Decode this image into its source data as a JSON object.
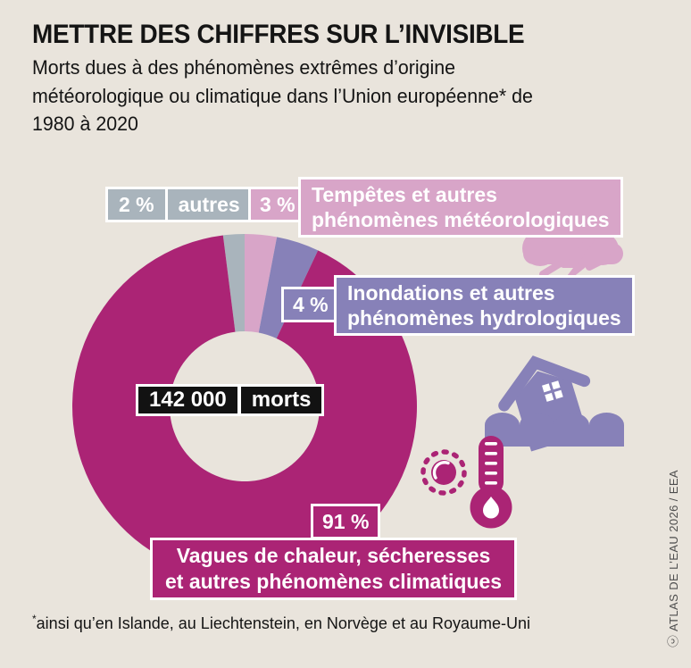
{
  "header": {
    "title": "METTRE DES CHIFFRES SUR L’INVISIBLE",
    "subtitle_lines": [
      "Morts dues à des phénomènes extrêmes d’origine",
      "météorologique ou climatique dans l’Union européenne* de",
      "1980 à 2020"
    ]
  },
  "chart_data": {
    "type": "donut",
    "title": "Morts dues à des phénomènes extrêmes d’origine météorologique ou climatique dans l’Union européenne de 1980 à 2020",
    "center_value": "142 000",
    "center_unit": "morts",
    "total_deaths": 142000,
    "start_angle_deg": -7.2,
    "outer_radius_px": 193,
    "inner_radius_px": 84,
    "segments": [
      {
        "key": "autres",
        "label": "autres",
        "pct": 2,
        "color_key": "gray"
      },
      {
        "key": "tempetes",
        "label": "Tempêtes et autres phénomènes météorologiques",
        "pct": 3,
        "color_key": "pink"
      },
      {
        "key": "inondations",
        "label": "Inondations et autres phénomènes hydrologiques",
        "pct": 4,
        "color_key": "purple"
      },
      {
        "key": "vagues",
        "label": "Vagues de chaleur, sécheresses et autres phénomènes climatiques",
        "pct": 91,
        "color_key": "magenta"
      }
    ]
  },
  "labels": {
    "autres": {
      "pct": "2 %",
      "name": "autres"
    },
    "tempetes": {
      "pct": "3 %",
      "line1": "Tempêtes et autres",
      "line2": "phénomènes météorologiques"
    },
    "inondations": {
      "pct": "4 %",
      "line1": "Inondations et autres",
      "line2": "phénomènes hydrologiques"
    },
    "vagues": {
      "pct": "91 %",
      "line1": "Vagues de chaleur, sécheresses",
      "line2": "et autres phénomènes climatiques"
    },
    "center": {
      "value": "142 000",
      "unit": "morts"
    }
  },
  "footnote": {
    "marker": "*",
    "text": "ainsi qu’en Islande, au Liechtenstein, en Norvège et au Royaume-Uni"
  },
  "credit": {
    "license_symbol": "ⓒ",
    "text": "ATLAS DE L’EAU 2026 / EEA"
  },
  "icons": {
    "storm": "storm-cloud-icon",
    "flood": "flooded-house-icon",
    "heat_sun": "sun-icon",
    "heat_thermometer": "thermometer-icon",
    "license": "cc-license-icon"
  },
  "colors": {
    "background": "#e9e4dc",
    "magenta": "#ab2475",
    "pink": "#d8a5c8",
    "purple": "#8781b8",
    "gray": "#a9b4bc",
    "box_black": "#121212",
    "title_text": "#141414",
    "credit_text": "#4d4d4d",
    "label_text": "#ffffff"
  }
}
